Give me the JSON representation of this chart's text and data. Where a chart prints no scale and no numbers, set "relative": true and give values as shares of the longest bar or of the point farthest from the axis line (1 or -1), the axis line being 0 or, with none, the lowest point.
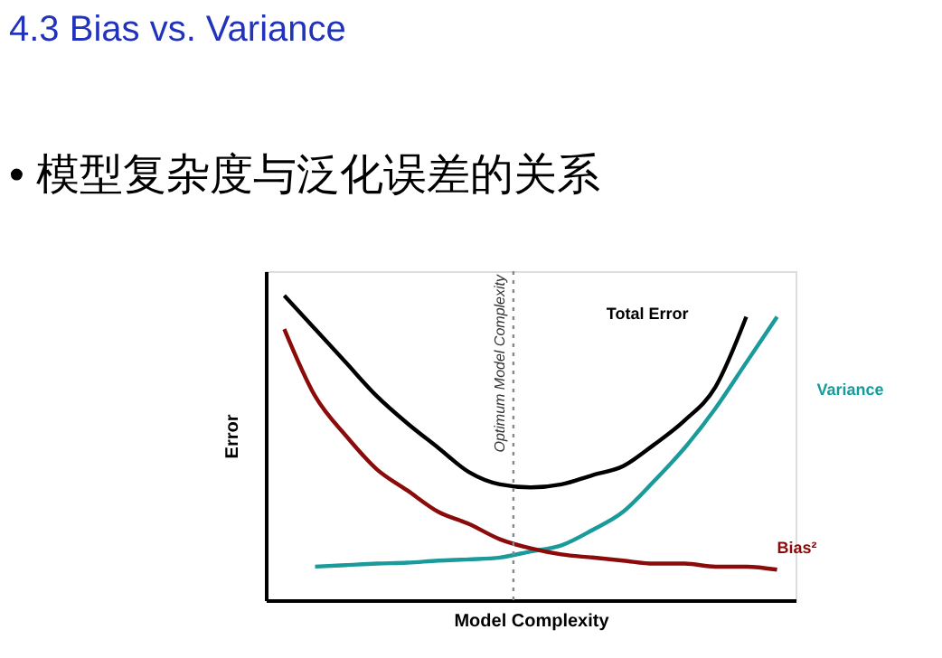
{
  "chart_data": {
    "type": "line",
    "title": "4.3 Bias vs. Variance",
    "subtitle": "• 模型复杂度与泛化误差的关系",
    "xlabel": "Model Complexity",
    "ylabel": "Error",
    "relative": true,
    "grid": false,
    "legend": false,
    "marker": "none",
    "line_style": "solid",
    "categories": [
      null,
      null,
      null,
      null,
      null,
      null,
      null,
      null,
      null,
      null,
      null,
      null,
      null,
      null,
      null,
      null,
      null
    ],
    "series": [
      {
        "name": "Total Error",
        "color": "#000000",
        "values": [
          1.0,
          0.89,
          0.78,
          0.67,
          0.58,
          0.5,
          0.42,
          0.38,
          0.37,
          0.38,
          0.41,
          0.44,
          0.51,
          0.59,
          0.7,
          0.93,
          null
        ]
      },
      {
        "name": "Variance",
        "color": "#1a9a9a",
        "values": [
          null,
          0.11,
          0.115,
          0.12,
          0.123,
          0.13,
          0.134,
          0.14,
          0.16,
          0.18,
          0.23,
          0.29,
          0.39,
          0.5,
          0.63,
          0.78,
          0.93
        ]
      },
      {
        "name": "Bias²",
        "color": "#8b0a0a",
        "values": [
          0.89,
          0.67,
          0.54,
          0.43,
          0.36,
          0.29,
          0.25,
          0.2,
          0.17,
          0.15,
          0.14,
          0.13,
          0.12,
          0.12,
          0.11,
          0.11,
          0.1
        ]
      }
    ],
    "annotations": [
      "Optimum Model Complexity"
    ]
  }
}
